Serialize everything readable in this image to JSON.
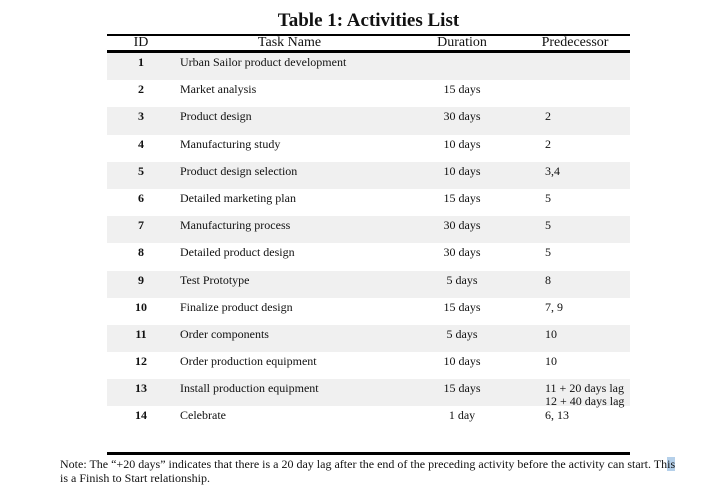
{
  "title": "Table 1: Activities List",
  "headers": {
    "id": "ID",
    "task": "Task Name",
    "duration": "Duration",
    "predecessor": "Predecessor"
  },
  "rows": [
    {
      "id": "1",
      "task": "Urban Sailor product development",
      "duration": "",
      "pred": ""
    },
    {
      "id": "2",
      "task": "Market analysis",
      "duration": "15 days",
      "pred": ""
    },
    {
      "id": "3",
      "task": "Product design",
      "duration": "30 days",
      "pred": "2"
    },
    {
      "id": "4",
      "task": "Manufacturing study",
      "duration": "10 days",
      "pred": "2"
    },
    {
      "id": "5",
      "task": "Product design selection",
      "duration": "10 days",
      "pred": "3,4"
    },
    {
      "id": "6",
      "task": "Detailed marketing plan",
      "duration": "15 days",
      "pred": "5"
    },
    {
      "id": "7",
      "task": "Manufacturing process",
      "duration": "30 days",
      "pred": "5"
    },
    {
      "id": "8",
      "task": "Detailed product design",
      "duration": "30 days",
      "pred": "5"
    },
    {
      "id": "9",
      "task": "Test Prototype",
      "duration": "5 days",
      "pred": "8"
    },
    {
      "id": "10",
      "task": "Finalize product design",
      "duration": "15 days",
      "pred": "7, 9"
    },
    {
      "id": "11",
      "task": "Order components",
      "duration": "5 days",
      "pred": "10"
    },
    {
      "id": "12",
      "task": "Order production equipment",
      "duration": "10 days",
      "pred": "10"
    },
    {
      "id": "13",
      "task": "Install production equipment",
      "duration": "15 days",
      "pred": "11 + 20 days lag",
      "pred2": "12 + 40 days lag"
    },
    {
      "id": "14",
      "task": "Celebrate",
      "duration": "1 day",
      "pred": "6, 13"
    }
  ],
  "note": {
    "before": "Note: The “+20 days” indicates that there is a 20 day lag after the end of the preceding activity before the activity can start. Th",
    "selected": "is",
    "after": " is a Finish to Start relationship."
  }
}
